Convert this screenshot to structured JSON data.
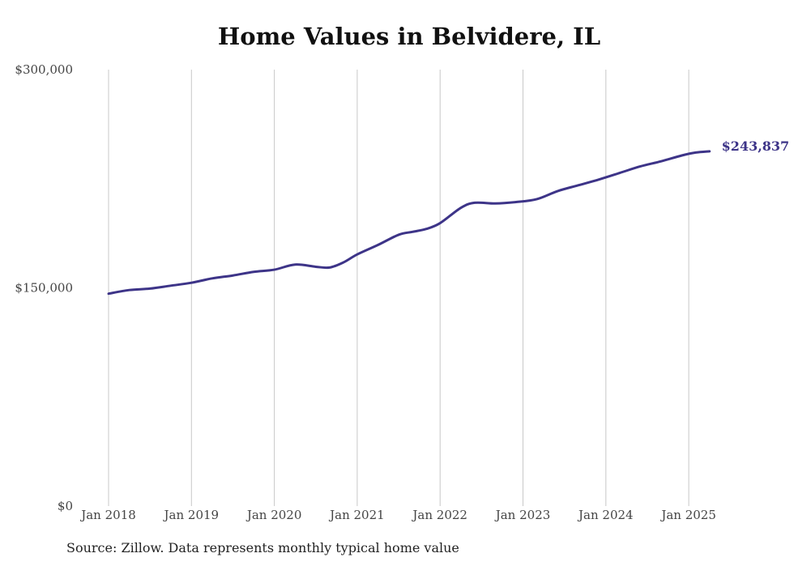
{
  "chart_data": {
    "type": "line",
    "title": "Home Values in Belvidere, IL",
    "xlabel": "",
    "ylabel": "",
    "x_ticks": [
      "Jan 2018",
      "Jan 2019",
      "Jan 2020",
      "Jan 2021",
      "Jan 2022",
      "Jan 2023",
      "Jan 2024",
      "Jan 2025"
    ],
    "y_ticks": [
      "$300,000",
      "$150,000",
      "$0"
    ],
    "y_tick_values": [
      300000,
      150000,
      0
    ],
    "ylim": [
      0,
      300000
    ],
    "xlim": [
      "2018-01",
      "2025-04"
    ],
    "grid": "vertical",
    "line_color": "#3d3488",
    "series": [
      {
        "name": "",
        "points": [
          {
            "x": "2018-01",
            "y": 146000
          },
          {
            "x": "2018-04",
            "y": 148500
          },
          {
            "x": "2018-07",
            "y": 149500
          },
          {
            "x": "2018-10",
            "y": 151500
          },
          {
            "x": "2019-01",
            "y": 153500
          },
          {
            "x": "2019-04",
            "y": 156500
          },
          {
            "x": "2019-07",
            "y": 158500
          },
          {
            "x": "2019-10",
            "y": 161000
          },
          {
            "x": "2020-01",
            "y": 162500
          },
          {
            "x": "2020-04",
            "y": 166000
          },
          {
            "x": "2020-07",
            "y": 164500
          },
          {
            "x": "2020-09",
            "y": 164000
          },
          {
            "x": "2020-11",
            "y": 167500
          },
          {
            "x": "2021-01",
            "y": 173000
          },
          {
            "x": "2021-04",
            "y": 179500
          },
          {
            "x": "2021-07",
            "y": 186500
          },
          {
            "x": "2021-09",
            "y": 188500
          },
          {
            "x": "2021-11",
            "y": 190500
          },
          {
            "x": "2022-01",
            "y": 194500
          },
          {
            "x": "2022-04",
            "y": 205000
          },
          {
            "x": "2022-06",
            "y": 208500
          },
          {
            "x": "2022-09",
            "y": 208000
          },
          {
            "x": "2022-12",
            "y": 209000
          },
          {
            "x": "2023-03",
            "y": 211000
          },
          {
            "x": "2023-06",
            "y": 216500
          },
          {
            "x": "2023-09",
            "y": 220500
          },
          {
            "x": "2023-12",
            "y": 224500
          },
          {
            "x": "2024-03",
            "y": 229000
          },
          {
            "x": "2024-06",
            "y": 233500
          },
          {
            "x": "2024-09",
            "y": 237000
          },
          {
            "x": "2024-12",
            "y": 241000
          },
          {
            "x": "2025-02",
            "y": 243000
          },
          {
            "x": "2025-04",
            "y": 243837
          }
        ]
      }
    ],
    "end_label": "$243,837",
    "source": "Source: Zillow. Data represents monthly typical home value"
  }
}
